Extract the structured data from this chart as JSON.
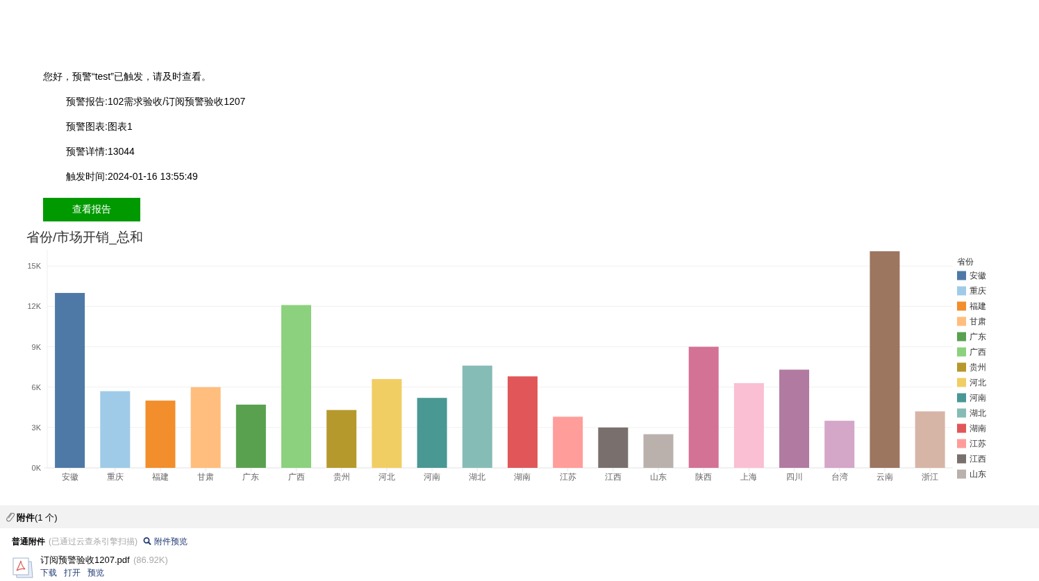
{
  "chart_data": {
    "type": "bar",
    "title": "省份/市场开销_总和",
    "legend_title": "省份",
    "categories": [
      "安徽",
      "重庆",
      "福建",
      "甘肃",
      "广东",
      "广西",
      "贵州",
      "河北",
      "河南",
      "湖北",
      "湖南",
      "江苏",
      "江西",
      "山东",
      "陕西",
      "上海",
      "四川",
      "台湾",
      "云南",
      "浙江"
    ],
    "series": [
      {
        "name": "安徽",
        "color": "#4e79a7",
        "values": [
          13000,
          null,
          null,
          null,
          null,
          null,
          null,
          null,
          null,
          null,
          null,
          null,
          null,
          null,
          null,
          null,
          null,
          null,
          null,
          null
        ]
      },
      {
        "name": "重庆",
        "color": "#a0cbe8",
        "values": [
          null,
          5700,
          null,
          null,
          null,
          null,
          null,
          null,
          null,
          null,
          null,
          null,
          null,
          null,
          null,
          null,
          null,
          null,
          null,
          null
        ]
      },
      {
        "name": "福建",
        "color": "#f28e2b",
        "values": [
          null,
          null,
          5000,
          null,
          null,
          null,
          null,
          null,
          null,
          null,
          null,
          null,
          null,
          null,
          null,
          null,
          null,
          null,
          null,
          null
        ]
      },
      {
        "name": "甘肃",
        "color": "#ffbe7d",
        "values": [
          null,
          null,
          null,
          6000,
          null,
          null,
          null,
          null,
          null,
          null,
          null,
          null,
          null,
          null,
          null,
          null,
          null,
          null,
          null,
          null
        ]
      },
      {
        "name": "广东",
        "color": "#59a14f",
        "values": [
          null,
          null,
          null,
          null,
          4700,
          null,
          null,
          null,
          null,
          null,
          null,
          null,
          null,
          null,
          null,
          null,
          null,
          null,
          null,
          null
        ]
      },
      {
        "name": "广西",
        "color": "#8cd17d",
        "values": [
          null,
          null,
          null,
          null,
          null,
          12100,
          null,
          null,
          null,
          null,
          null,
          null,
          null,
          null,
          null,
          null,
          null,
          null,
          null,
          null
        ]
      },
      {
        "name": "贵州",
        "color": "#b6992d",
        "values": [
          null,
          null,
          null,
          null,
          null,
          null,
          4300,
          null,
          null,
          null,
          null,
          null,
          null,
          null,
          null,
          null,
          null,
          null,
          null,
          null
        ]
      },
      {
        "name": "河北",
        "color": "#f1ce63",
        "values": [
          null,
          null,
          null,
          null,
          null,
          null,
          null,
          6600,
          null,
          null,
          null,
          null,
          null,
          null,
          null,
          null,
          null,
          null,
          null,
          null
        ]
      },
      {
        "name": "河南",
        "color": "#499894",
        "values": [
          null,
          null,
          null,
          null,
          null,
          null,
          null,
          null,
          5200,
          null,
          null,
          null,
          null,
          null,
          null,
          null,
          null,
          null,
          null,
          null
        ]
      },
      {
        "name": "湖北",
        "color": "#86bcb6",
        "values": [
          null,
          null,
          null,
          null,
          null,
          null,
          null,
          null,
          null,
          7600,
          null,
          null,
          null,
          null,
          null,
          null,
          null,
          null,
          null,
          null
        ]
      },
      {
        "name": "湖南",
        "color": "#e15759",
        "values": [
          null,
          null,
          null,
          null,
          null,
          null,
          null,
          null,
          null,
          null,
          6800,
          null,
          null,
          null,
          null,
          null,
          null,
          null,
          null,
          null
        ]
      },
      {
        "name": "江苏",
        "color": "#ff9d9a",
        "values": [
          null,
          null,
          null,
          null,
          null,
          null,
          null,
          null,
          null,
          null,
          null,
          3800,
          null,
          null,
          null,
          null,
          null,
          null,
          null,
          null
        ]
      },
      {
        "name": "江西",
        "color": "#79706e",
        "values": [
          null,
          null,
          null,
          null,
          null,
          null,
          null,
          null,
          null,
          null,
          null,
          null,
          3000,
          null,
          null,
          null,
          null,
          null,
          null,
          null
        ]
      },
      {
        "name": "山东",
        "color": "#bab0ac",
        "values": [
          null,
          null,
          null,
          null,
          null,
          null,
          null,
          null,
          null,
          null,
          null,
          null,
          null,
          2500,
          null,
          null,
          null,
          null,
          null,
          null
        ]
      },
      {
        "color": "#d37295",
        "values": [
          null,
          null,
          null,
          null,
          null,
          null,
          null,
          null,
          null,
          null,
          null,
          null,
          null,
          null,
          9000,
          null,
          null,
          null,
          null,
          null
        ]
      },
      {
        "color": "#fabfd2",
        "values": [
          null,
          null,
          null,
          null,
          null,
          null,
          null,
          null,
          null,
          null,
          null,
          null,
          null,
          null,
          null,
          6300,
          null,
          null,
          null,
          null
        ]
      },
      {
        "color": "#b07aa1",
        "values": [
          null,
          null,
          null,
          null,
          null,
          null,
          null,
          null,
          null,
          null,
          null,
          null,
          null,
          null,
          null,
          null,
          7300,
          null,
          null,
          null
        ]
      },
      {
        "color": "#d4a6c8",
        "values": [
          null,
          null,
          null,
          null,
          null,
          null,
          null,
          null,
          null,
          null,
          null,
          null,
          null,
          null,
          null,
          null,
          null,
          3500,
          null,
          null
        ]
      },
      {
        "color": "#9d7660",
        "values": [
          null,
          null,
          null,
          null,
          null,
          null,
          null,
          null,
          null,
          null,
          null,
          null,
          null,
          null,
          null,
          null,
          null,
          null,
          16100,
          null
        ]
      },
      {
        "color": "#d7b5a6",
        "values": [
          null,
          null,
          null,
          null,
          null,
          null,
          null,
          null,
          null,
          null,
          null,
          null,
          null,
          null,
          null,
          null,
          null,
          null,
          null,
          4200
        ]
      }
    ],
    "ylim": [
      0,
      16200
    ],
    "yticks": [
      {
        "value": 0,
        "label": "0K"
      },
      {
        "value": 3000,
        "label": "3K"
      },
      {
        "value": 6000,
        "label": "6K"
      },
      {
        "value": 9000,
        "label": "9K"
      },
      {
        "value": 12000,
        "label": "12K"
      },
      {
        "value": 15000,
        "label": "15K"
      }
    ],
    "grid": "y",
    "legend": "right",
    "annotations": [
      "您好，预警“test”已触发，请及时查看。",
      "预警报告:102需求验收/订阅预警验收1207",
      "预警图表:图表1",
      "预警详情:13044",
      "触发时间:2024-01-16 13:55:49",
      "查看报告",
      "**附件**(1 个)",
      "普通附件",
      "(已通过云查杀引擎扫描)",
      "附件预览",
      "订阅预警验收1207.pdf",
      "(86.92K)",
      "下载",
      "打开",
      "预览"
    ]
  }
}
